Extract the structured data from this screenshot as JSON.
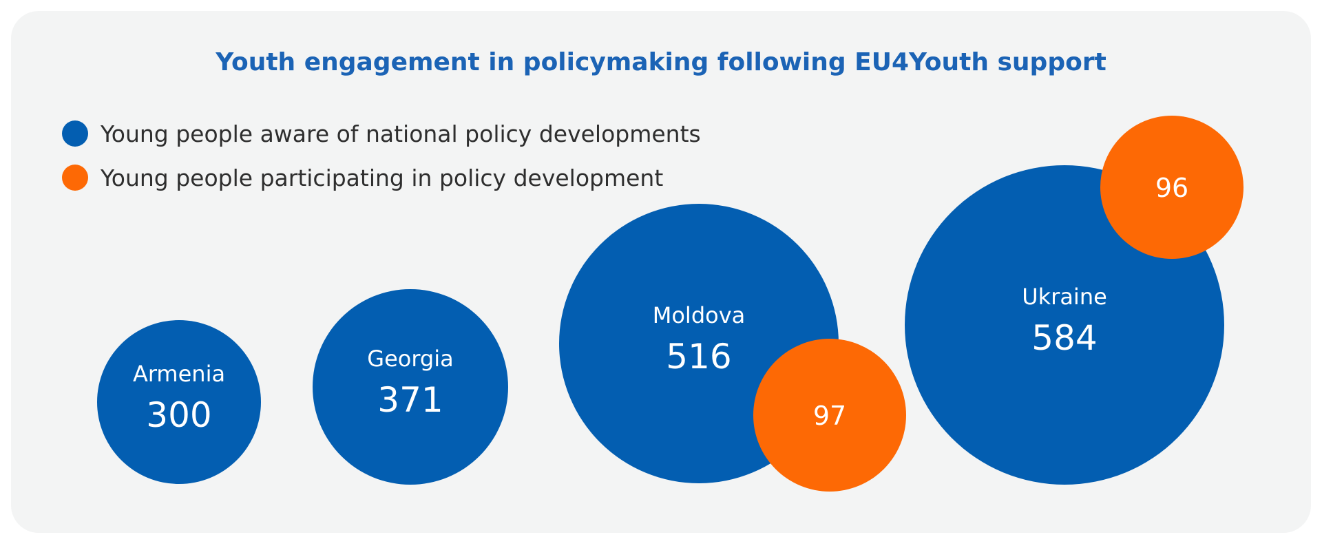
{
  "colors": {
    "aware": "#035eb1",
    "participating": "#fd6905",
    "title": "#1b63b5",
    "background": "#f3f4f4"
  },
  "chart_data": {
    "type": "bubble",
    "title": "Youth engagement in policymaking following EU4Youth support",
    "legend_position": "top-left",
    "series": [
      {
        "name": "Young people aware of national policy developments",
        "color": "#035eb1",
        "points": [
          {
            "country": "Armenia",
            "value": 300
          },
          {
            "country": "Georgia",
            "value": 371
          },
          {
            "country": "Moldova",
            "value": 516
          },
          {
            "country": "Ukraine",
            "value": 584
          }
        ]
      },
      {
        "name": "Young people participating in policy development",
        "color": "#fd6905",
        "points": [
          {
            "country": "Moldova",
            "value": 97
          },
          {
            "country": "Ukraine",
            "value": 96
          }
        ]
      }
    ]
  }
}
